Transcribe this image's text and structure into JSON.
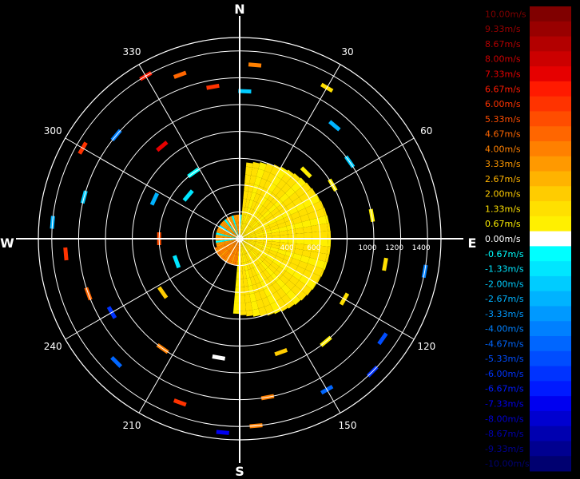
{
  "chart_data": {
    "type": "polar-radar-velocity",
    "compass": {
      "north": "N",
      "south": "S",
      "east": "E",
      "west": "W"
    },
    "bearings": [
      {
        "angle": 30,
        "label": "30"
      },
      {
        "angle": 60,
        "label": "60"
      },
      {
        "angle": 120,
        "label": "120"
      },
      {
        "angle": 150,
        "label": "150"
      },
      {
        "angle": 210,
        "label": "210"
      },
      {
        "angle": 240,
        "label": "240"
      },
      {
        "angle": 300,
        "label": "300"
      },
      {
        "angle": 330,
        "label": "330"
      }
    ],
    "range_rings": [
      200,
      400,
      600,
      800,
      1000,
      1200,
      1400
    ],
    "range_labels": [
      {
        "value": 200,
        "label": ""
      },
      {
        "value": 400,
        "label": "400"
      },
      {
        "value": 600,
        "label": "600"
      },
      {
        "value": 800,
        "label": ""
      },
      {
        "value": 1000,
        "label": "1000"
      },
      {
        "value": 1200,
        "label": "1200"
      },
      {
        "value": 1400,
        "label": "1400"
      }
    ],
    "max_range": 1500,
    "colorbar": [
      {
        "label": "10.00m/s",
        "value": 10.0,
        "color": "#800000"
      },
      {
        "label": "9.33m/s",
        "value": 9.33,
        "color": "#990000"
      },
      {
        "label": "8.67m/s",
        "value": 8.67,
        "color": "#b30000"
      },
      {
        "label": "8.00m/s",
        "value": 8.0,
        "color": "#cc0000"
      },
      {
        "label": "7.33m/s",
        "value": 7.33,
        "color": "#e60000"
      },
      {
        "label": "6.67m/s",
        "value": 6.67,
        "color": "#ff1a00"
      },
      {
        "label": "6.00m/s",
        "value": 6.0,
        "color": "#ff3300"
      },
      {
        "label": "5.33m/s",
        "value": 5.33,
        "color": "#ff4d00"
      },
      {
        "label": "4.67m/s",
        "value": 4.67,
        "color": "#ff6600"
      },
      {
        "label": "4.00m/s",
        "value": 4.0,
        "color": "#ff8000"
      },
      {
        "label": "3.33m/s",
        "value": 3.33,
        "color": "#ff9900"
      },
      {
        "label": "2.67m/s",
        "value": 2.67,
        "color": "#ffb300"
      },
      {
        "label": "2.00m/s",
        "value": 2.0,
        "color": "#ffcc00"
      },
      {
        "label": "1.33m/s",
        "value": 1.33,
        "color": "#ffe000"
      },
      {
        "label": "0.67m/s",
        "value": 0.67,
        "color": "#fff000"
      },
      {
        "label": "0.00m/s",
        "value": 0.0,
        "color": "#ffffff"
      },
      {
        "label": "-0.67m/s",
        "value": -0.67,
        "color": "#00ffff"
      },
      {
        "label": "-1.33m/s",
        "value": -1.33,
        "color": "#00e6ff"
      },
      {
        "label": "-2.00m/s",
        "value": -2.0,
        "color": "#00ccff"
      },
      {
        "label": "-2.67m/s",
        "value": -2.67,
        "color": "#00b3ff"
      },
      {
        "label": "-3.33m/s",
        "value": -3.33,
        "color": "#0099ff"
      },
      {
        "label": "-4.00m/s",
        "value": -4.0,
        "color": "#0080ff"
      },
      {
        "label": "-4.67m/s",
        "value": -4.67,
        "color": "#0066ff"
      },
      {
        "label": "-5.33m/s",
        "value": -5.33,
        "color": "#004dff"
      },
      {
        "label": "-6.00m/s",
        "value": -6.0,
        "color": "#0033ff"
      },
      {
        "label": "-6.67m/s",
        "value": -6.67,
        "color": "#001aff"
      },
      {
        "label": "-7.33m/s",
        "value": -7.33,
        "color": "#0000f0"
      },
      {
        "label": "-8.00m/s",
        "value": -8.0,
        "color": "#0000d0"
      },
      {
        "label": "-8.67m/s",
        "value": -8.67,
        "color": "#0000b0"
      },
      {
        "label": "-9.33m/s",
        "value": -9.33,
        "color": "#000090"
      },
      {
        "label": "-10.00m/s",
        "value": -10.0,
        "color": "#000070"
      }
    ],
    "echoes": [
      {
        "az": 35,
        "r": 600,
        "v": 1.0
      },
      {
        "az": 45,
        "r": 700,
        "v": 1.0
      },
      {
        "az": 60,
        "r": 800,
        "v": 0.7
      },
      {
        "az": 80,
        "r": 1000,
        "v": 0.7
      },
      {
        "az": 100,
        "r": 1100,
        "v": 1.3
      },
      {
        "az": 120,
        "r": 900,
        "v": 1.3
      },
      {
        "az": 140,
        "r": 1000,
        "v": 0.7
      },
      {
        "az": 160,
        "r": 900,
        "v": 2.0
      },
      {
        "az": 170,
        "r": 1200,
        "v": 4.0
      },
      {
        "az": 175,
        "r": 1400,
        "v": 4.0
      },
      {
        "az": 30,
        "r": 1300,
        "v": 1.3
      },
      {
        "az": 40,
        "r": 1100,
        "v": -2.7
      },
      {
        "az": 55,
        "r": 1000,
        "v": -2.0
      },
      {
        "az": 100,
        "r": 1400,
        "v": -4.0
      },
      {
        "az": 125,
        "r": 1300,
        "v": -5.3
      },
      {
        "az": 135,
        "r": 1400,
        "v": -6.0
      },
      {
        "az": 150,
        "r": 1300,
        "v": -4.7
      },
      {
        "az": 5,
        "r": 1300,
        "v": 4.0
      },
      {
        "az": 2,
        "r": 1100,
        "v": -2.0
      },
      {
        "az": 350,
        "r": 1150,
        "v": 6.0
      },
      {
        "az": 340,
        "r": 1300,
        "v": 4.7
      },
      {
        "az": 330,
        "r": 1400,
        "v": 6.7
      },
      {
        "az": 310,
        "r": 1200,
        "v": -4.0
      },
      {
        "az": 300,
        "r": 1350,
        "v": 6.0
      },
      {
        "az": 285,
        "r": 1200,
        "v": -2.0
      },
      {
        "az": 275,
        "r": 1400,
        "v": -2.7
      },
      {
        "az": 265,
        "r": 1300,
        "v": 6.0
      },
      {
        "az": 250,
        "r": 1200,
        "v": 4.7
      },
      {
        "az": 240,
        "r": 1100,
        "v": -6.0
      },
      {
        "az": 225,
        "r": 1300,
        "v": -4.7
      },
      {
        "az": 215,
        "r": 1000,
        "v": 4.0
      },
      {
        "az": 200,
        "r": 1300,
        "v": 6.0
      },
      {
        "az": 190,
        "r": 900,
        "v": 0.0
      },
      {
        "az": 185,
        "r": 1450,
        "v": -7.3
      },
      {
        "az": 320,
        "r": 900,
        "v": 7.3
      },
      {
        "az": 295,
        "r": 700,
        "v": -2.7
      },
      {
        "az": 270,
        "r": 600,
        "v": 5.3
      },
      {
        "az": 235,
        "r": 700,
        "v": 2.0
      },
      {
        "az": 250,
        "r": 500,
        "v": -1.3
      },
      {
        "az": 310,
        "r": 500,
        "v": -1.3
      },
      {
        "az": 325,
        "r": 600,
        "v": -0.7
      }
    ]
  }
}
